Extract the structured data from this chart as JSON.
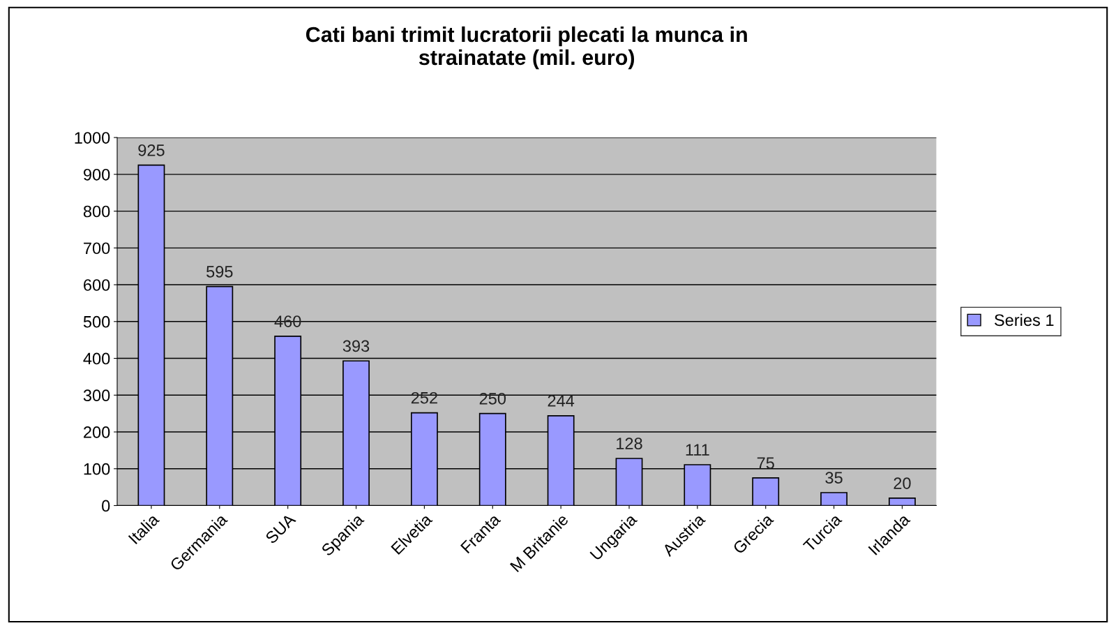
{
  "chart_data": {
    "type": "bar",
    "title": "Cati bani trimit lucratorii plecati la munca in\nstrainatate (mil. euro)",
    "categories": [
      "Italia",
      "Germania",
      "SUA",
      "Spania",
      "Elvetia",
      "Franta",
      "M Britanie",
      "Ungaria",
      "Austria",
      "Grecia",
      "Turcia",
      "Irlanda"
    ],
    "series": [
      {
        "name": "Series 1",
        "color": "#9999ff",
        "values": [
          925,
          595,
          460,
          393,
          252,
          250,
          244,
          128,
          111,
          75,
          35,
          20
        ]
      }
    ],
    "ylim": [
      0,
      1000
    ],
    "yticks": [
      0,
      100,
      200,
      300,
      400,
      500,
      600,
      700,
      800,
      900,
      1000
    ],
    "grid": "y",
    "legend": "right",
    "data_labels": true
  }
}
